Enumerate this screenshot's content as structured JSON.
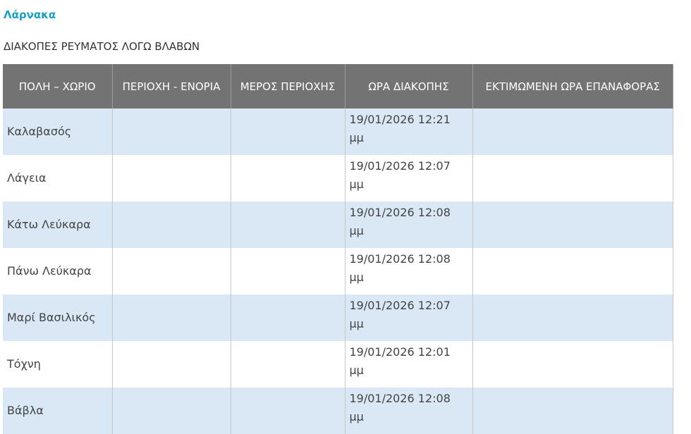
{
  "region": "Λάρνακα",
  "title": "ΔΙΑΚΟΠΕΣ ΡΕΥΜΑΤΟΣ ΛΟΓΩ ΒΛΑΒΩΝ",
  "table": {
    "headers": [
      "ΠΟΛΗ – ΧΩΡΙΟ",
      "ΠΕΡΙΟΧΗ - ΕΝΟΡΙΑ",
      "ΜΕΡΟΣ ΠΕΡΙΟΧΗΣ",
      "ΩΡΑ ΔΙΑΚΟΠΗΣ",
      "ΕΚΤΙΜΩΜΕΝΗ ΩΡΑ ΕΠΑΝΑΦΟΡΑΣ"
    ],
    "rows": [
      {
        "village": "Καλαβασός",
        "area": "",
        "part": "",
        "time": "19/01/2026 12:21 μμ",
        "restore": ""
      },
      {
        "village": "Λάγεια",
        "area": "",
        "part": "",
        "time": "19/01/2026 12:07 μμ",
        "restore": ""
      },
      {
        "village": "Κάτω Λεύκαρα",
        "area": "",
        "part": "",
        "time": "19/01/2026 12:08 μμ",
        "restore": ""
      },
      {
        "village": "Πάνω Λεύκαρα",
        "area": "",
        "part": "",
        "time": "19/01/2026 12:08 μμ",
        "restore": ""
      },
      {
        "village": "Μαρί Βασιλικός",
        "area": "",
        "part": "",
        "time": "19/01/2026 12:07 μμ",
        "restore": ""
      },
      {
        "village": "Τόχνη",
        "area": "",
        "part": "",
        "time": "19/01/2026 12:01 μμ",
        "restore": ""
      },
      {
        "village": "Βάβλα",
        "area": "",
        "part": "",
        "time": "19/01/2026 12:08 μμ",
        "restore": ""
      }
    ]
  },
  "colors": {
    "accent": "#1a9fc4",
    "header_bg": "#737373",
    "row_alt": "#d9e8f4"
  }
}
